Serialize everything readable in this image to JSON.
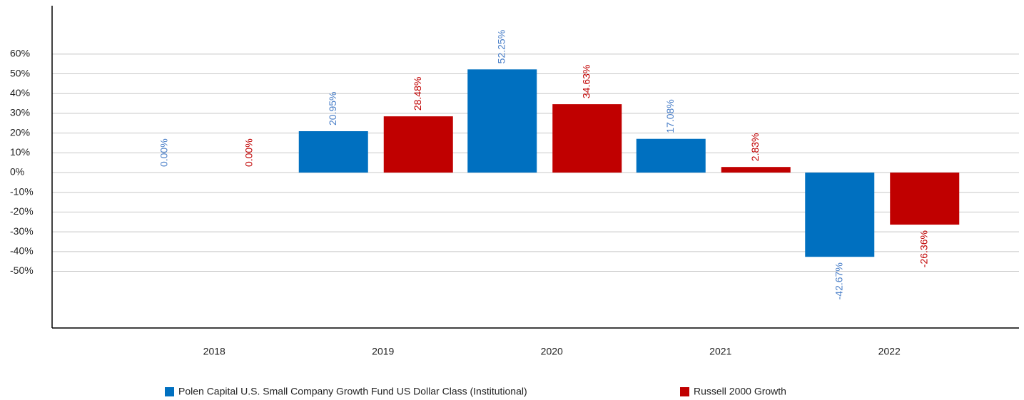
{
  "chart_data": {
    "type": "bar",
    "categories": [
      "2018",
      "2019",
      "2020",
      "2021",
      "2022"
    ],
    "series": [
      {
        "name": "Polen Capital U.S. Small Company Growth Fund US Dollar Class (Institutional)",
        "color": "#0070c0",
        "label_color": "#4a7fc8",
        "values": [
          0,
          20.95,
          52.25,
          17.08,
          -42.67
        ],
        "value_labels": [
          "0.00%",
          "20.95%",
          "52.25%",
          "17.08%",
          "-42.67%"
        ]
      },
      {
        "name": "Russell 2000 Growth",
        "color": "#c00000",
        "label_color": "#c00000",
        "values": [
          0,
          28.48,
          34.63,
          2.83,
          -26.36
        ],
        "value_labels": [
          "0.00%",
          "28.48%",
          "34.63%",
          "2.83%",
          "-26.36%"
        ]
      }
    ],
    "ylim": [
      -78.7,
      84.5
    ],
    "yticks": [
      {
        "value": 60,
        "label": "60%"
      },
      {
        "value": 50,
        "label": "50%"
      },
      {
        "value": 40,
        "label": "40%"
      },
      {
        "value": 30,
        "label": "30%"
      },
      {
        "value": 20,
        "label": "20%"
      },
      {
        "value": 10,
        "label": "10%"
      },
      {
        "value": 0,
        "label": "0%"
      },
      {
        "value": -10,
        "label": "-10%"
      },
      {
        "value": -20,
        "label": "-20%"
      },
      {
        "value": -30,
        "label": "-30%"
      },
      {
        "value": -40,
        "label": "-40%"
      },
      {
        "value": -50,
        "label": "-50%"
      }
    ],
    "grid": true,
    "legend": "bottom"
  }
}
